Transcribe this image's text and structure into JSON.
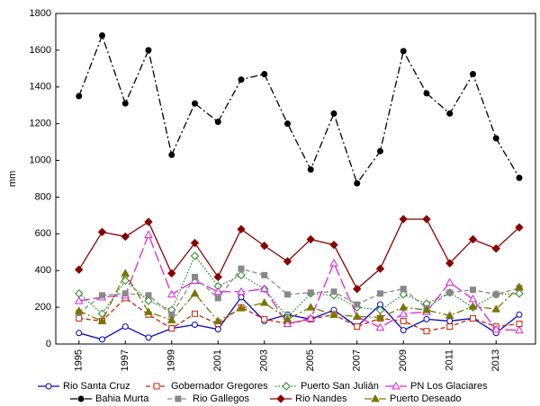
{
  "chart_data": {
    "type": "line",
    "y_label": "mm",
    "x": [
      1995,
      1996,
      1997,
      1998,
      1999,
      2000,
      2001,
      2002,
      2003,
      2004,
      2005,
      2006,
      2007,
      2008,
      2009,
      2010,
      2011,
      2012,
      2013,
      2014
    ],
    "xlim": [
      1994,
      2014.7
    ],
    "xticks": [
      1995,
      1997,
      1999,
      2001,
      2003,
      2005,
      2007,
      2009,
      2011,
      2013
    ],
    "ylim": [
      0,
      1800
    ],
    "yticks": [
      0,
      200,
      400,
      600,
      800,
      1000,
      1200,
      1400,
      1600,
      1800
    ],
    "grid": false,
    "legend": "bottom",
    "series": [
      {
        "name": "Rio Santa Cruz",
        "color": "#0000cc",
        "marker": "circle",
        "filled": false,
        "dash": "solid",
        "values": [
          60,
          25,
          95,
          35,
          85,
          105,
          80,
          255,
          125,
          160,
          135,
          185,
          95,
          215,
          75,
          135,
          125,
          140,
          60,
          160
        ]
      },
      {
        "name": "Gobernador Gregores",
        "color": "#cc2200",
        "marker": "square",
        "filled": false,
        "dash": "dash",
        "values": [
          140,
          125,
          250,
          160,
          85,
          165,
          110,
          200,
          135,
          110,
          135,
          160,
          95,
          140,
          125,
          70,
          95,
          140,
          95,
          110
        ]
      },
      {
        "name": "Puerto San Julián",
        "color": "#228822",
        "marker": "diamond",
        "filled": false,
        "dash": "dot",
        "values": [
          275,
          165,
          345,
          235,
          185,
          480,
          315,
          375,
          300,
          145,
          275,
          265,
          200,
          185,
          270,
          220,
          280,
          200,
          270,
          275
        ]
      },
      {
        "name": "PN Los Glaciares",
        "color": "#dd22dd",
        "marker": "triangle",
        "filled": false,
        "dash": "longdash",
        "values": [
          235,
          255,
          265,
          595,
          270,
          345,
          285,
          285,
          300,
          110,
          140,
          440,
          150,
          90,
          165,
          175,
          335,
          245,
          80,
          75
        ]
      },
      {
        "name": "Bahia Murta",
        "color": "#000000",
        "marker": "circle",
        "filled": true,
        "dash": "dashdot",
        "values": [
          1350,
          1680,
          1310,
          1600,
          1030,
          1310,
          1210,
          1440,
          1470,
          1200,
          950,
          1255,
          875,
          1050,
          1595,
          1365,
          1255,
          1470,
          1120,
          905
        ]
      },
      {
        "name": "Rio Gallegos",
        "color": "#888888",
        "marker": "square",
        "filled": true,
        "dash": "dash",
        "values": [
          170,
          265,
          275,
          265,
          160,
          365,
          250,
          410,
          375,
          270,
          280,
          285,
          215,
          275,
          300,
          195,
          280,
          295,
          270,
          305
        ]
      },
      {
        "name": "Rio Nandes",
        "color": "#880000",
        "marker": "diamond",
        "filled": true,
        "dash": "solid",
        "values": [
          405,
          610,
          585,
          665,
          385,
          550,
          365,
          625,
          535,
          450,
          570,
          540,
          300,
          410,
          680,
          680,
          440,
          570,
          520,
          635
        ]
      },
      {
        "name": "Puerto Deseado",
        "color": "#777700",
        "marker": "triangle",
        "filled": true,
        "dash": "dashdot",
        "values": [
          180,
          125,
          385,
          175,
          130,
          275,
          125,
          195,
          225,
          135,
          200,
          160,
          150,
          145,
          200,
          185,
          155,
          205,
          190,
          310
        ]
      }
    ]
  }
}
